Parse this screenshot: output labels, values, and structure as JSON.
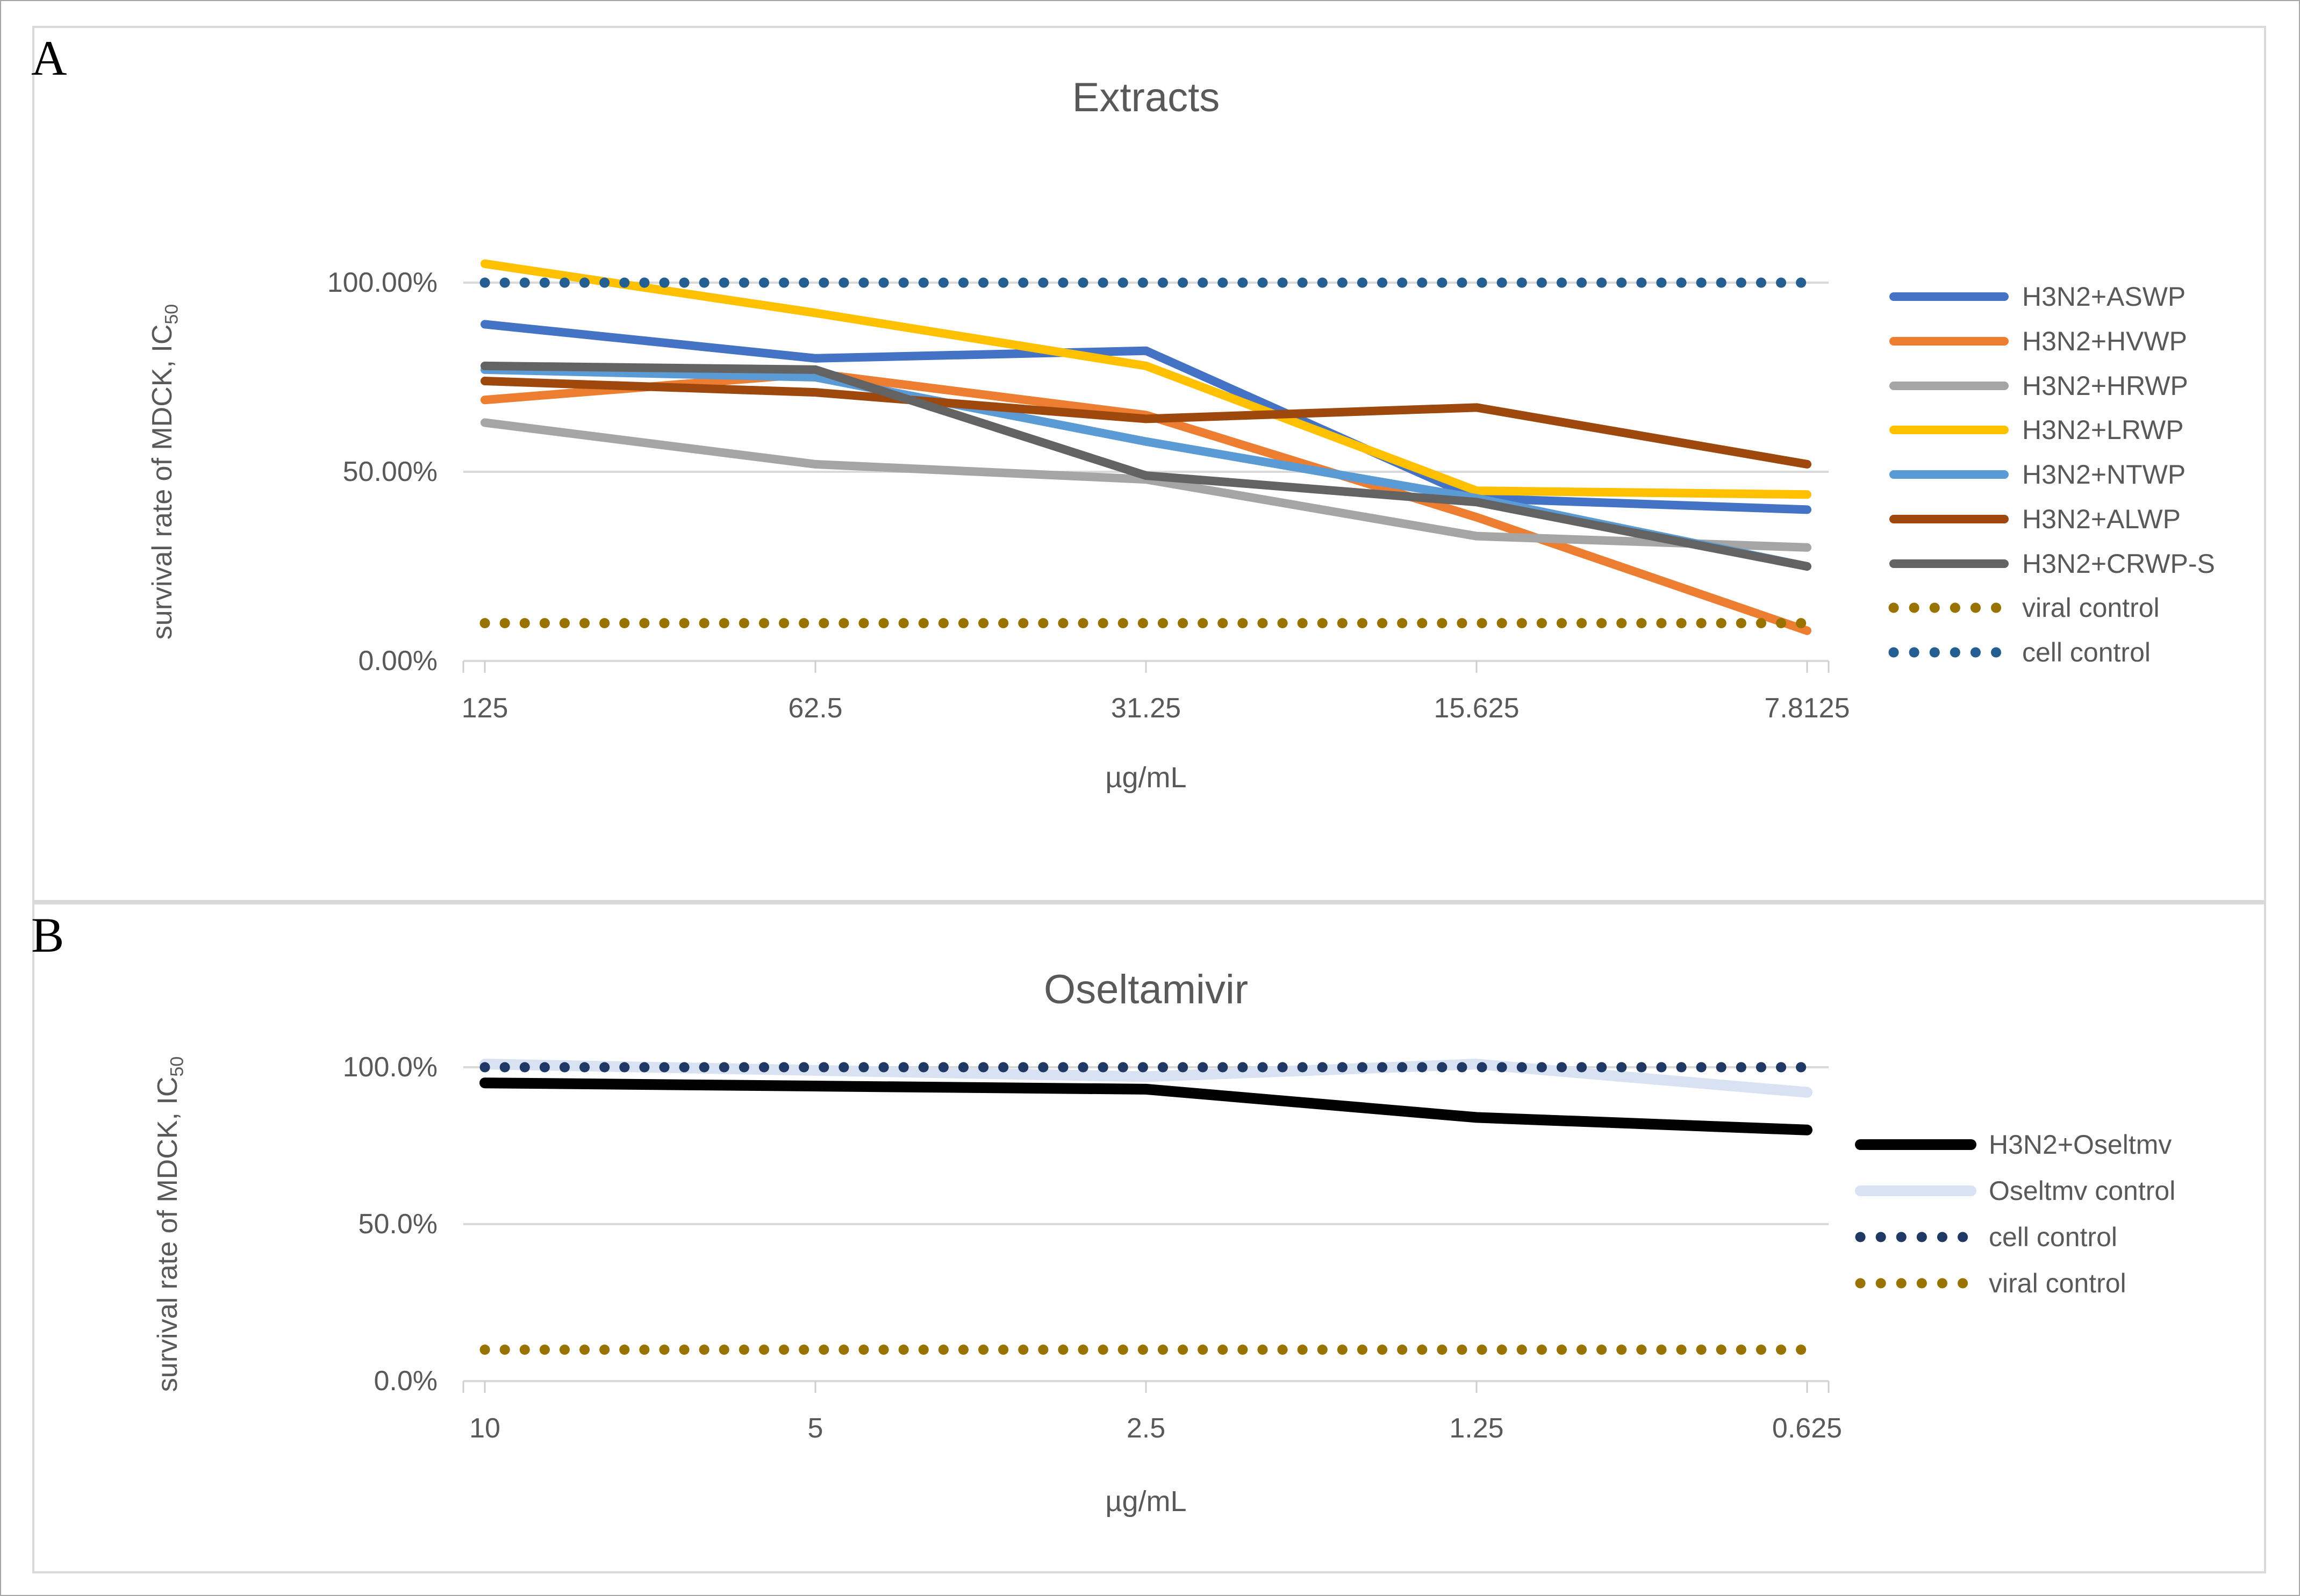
{
  "figure": {
    "background": "#FFFFFF",
    "outer_border_color": "#A6A6A6",
    "panel_border_color": "#D9D9D9",
    "gridline_color": "#D9D9D9",
    "axis_color": "#CFCFCF",
    "text_color": "#595959"
  },
  "panels": [
    {
      "label": "A",
      "title": "Extracts",
      "y_axis_title": "survival rate of MDCK, IC",
      "y_axis_title_sub": "50",
      "x_axis_title": "µg/mL",
      "y_tick_labels": [
        "100.00%",
        "50.00%",
        "0.00%"
      ],
      "chart_data": {
        "type": "line",
        "categories": [
          "125",
          "62.5",
          "31.25",
          "15.625",
          "7.8125"
        ],
        "title": "Extracts",
        "xlabel": "µg/mL",
        "ylabel": "survival rate of MDCK, IC50",
        "ylim": [
          0,
          110
        ],
        "ytick_values_pct": [
          0,
          50,
          100
        ],
        "grid": "horizontal-major",
        "legend_position": "right",
        "series": [
          {
            "name": "H3N2+ASWP",
            "color": "#4472C4",
            "style": "solid",
            "values": [
              89,
              80,
              82,
              43,
              40
            ]
          },
          {
            "name": "H3N2+HVWP",
            "color": "#ED7D31",
            "style": "solid",
            "values": [
              69,
              76,
              65,
              38,
              8
            ]
          },
          {
            "name": "H3N2+HRWP",
            "color": "#A5A5A5",
            "style": "solid",
            "values": [
              63,
              52,
              48,
              33,
              30
            ]
          },
          {
            "name": "H3N2+LRWP",
            "color": "#FFC000",
            "style": "solid",
            "values": [
              105,
              92,
              78,
              45,
              44
            ]
          },
          {
            "name": "H3N2+NTWP",
            "color": "#5B9BD5",
            "style": "solid",
            "values": [
              77,
              75,
              58,
              43,
              25
            ]
          },
          {
            "name": "H3N2+ALWP",
            "color": "#9E480E",
            "style": "solid",
            "values": [
              74,
              71,
              64,
              67,
              52
            ]
          },
          {
            "name": "H3N2+CRWP-S",
            "color": "#636363",
            "style": "solid",
            "values": [
              78,
              77,
              49,
              42,
              25
            ]
          },
          {
            "name": "viral control",
            "color": "#997300",
            "style": "dotted",
            "values": [
              10,
              10,
              10,
              10,
              10
            ]
          },
          {
            "name": "cell control",
            "color": "#255E91",
            "style": "dotted",
            "values": [
              100,
              100,
              100,
              100,
              100
            ]
          }
        ]
      }
    },
    {
      "label": "B",
      "title": "Oseltamivir",
      "y_axis_title": "survival rate of MDCK, IC",
      "y_axis_title_sub": "50",
      "x_axis_title": "µg/mL",
      "y_tick_labels": [
        "100.0%",
        "50.0%",
        "0.0%"
      ],
      "chart_data": {
        "type": "line",
        "categories": [
          "10",
          "5",
          "2.5",
          "1.25",
          "0.625"
        ],
        "title": "Oseltamivir",
        "xlabel": "µg/mL",
        "ylabel": "survival rate of MDCK, IC50",
        "ylim": [
          0,
          110
        ],
        "ytick_values_pct": [
          0,
          50,
          100
        ],
        "grid": "horizontal-major",
        "legend_position": "right",
        "series": [
          {
            "name": "H3N2+Oseltmv",
            "color": "#000000",
            "style": "solid",
            "values": [
              95,
              94,
              93,
              84,
              80
            ]
          },
          {
            "name": "Oseltmv control",
            "color": "#D9E2F3",
            "style": "solid",
            "values": [
              101,
              99,
              97,
              101,
              92
            ]
          },
          {
            "name": "cell control",
            "color": "#1F3864",
            "style": "dotted",
            "values": [
              100,
              100,
              100,
              100,
              100
            ]
          },
          {
            "name": "viral control",
            "color": "#997300",
            "style": "dotted",
            "values": [
              10,
              10,
              10,
              10,
              10
            ]
          }
        ]
      }
    }
  ]
}
